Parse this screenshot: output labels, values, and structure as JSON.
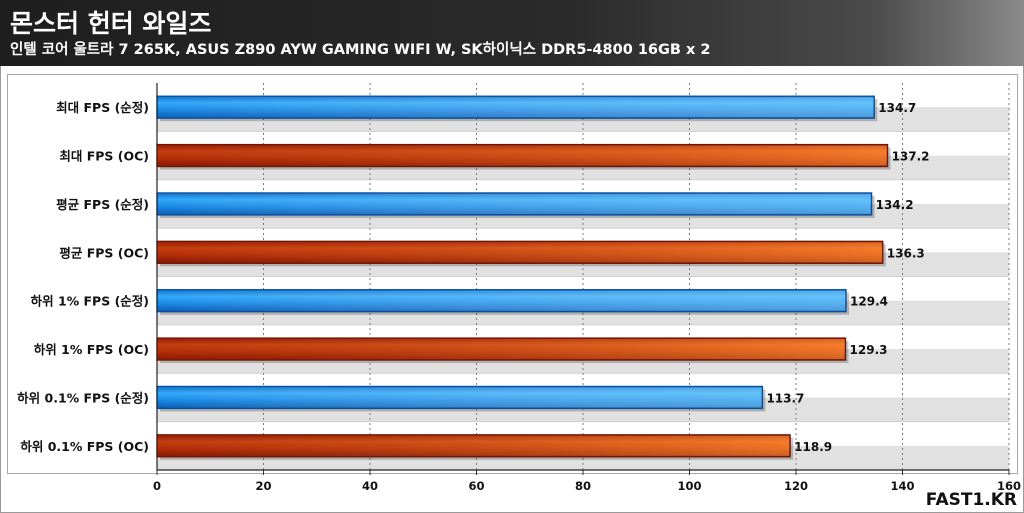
{
  "header": {
    "title": "몬스터 헌터 와일즈",
    "subtitle": "인텔 코어 울트라 7 265K, ASUS Z890 AYW GAMING WIFI W, SK하이닉스 DDR5-4800 16GB x 2"
  },
  "brand": "FAST1.KR",
  "colors": {
    "stock": "#1a8ae6",
    "oc": "#d94410",
    "grid": "#7a7a7a",
    "band": "#e1e1e1"
  },
  "chart_data": {
    "type": "bar",
    "orientation": "horizontal",
    "categories": [
      "최대 FPS (순정)",
      "최대 FPS (OC)",
      "평균 FPS (순정)",
      "평균 FPS (OC)",
      "하위 1% FPS (순정)",
      "하위 1% FPS (OC)",
      "하위 0.1% FPS (순정)",
      "하위 0.1% FPS (OC)"
    ],
    "values": [
      134.7,
      137.2,
      134.2,
      136.3,
      129.4,
      129.3,
      113.7,
      118.9
    ],
    "value_labels": [
      "134.7",
      "137.2",
      "134.2",
      "136.3",
      "129.4",
      "129.3",
      "113.7",
      "118.9"
    ],
    "bar_style": [
      "stock",
      "oc",
      "stock",
      "oc",
      "stock",
      "oc",
      "stock",
      "oc"
    ],
    "xlim": [
      0,
      160
    ],
    "xticks": [
      0,
      20,
      40,
      60,
      80,
      100,
      120,
      140,
      160
    ],
    "xtick_labels": [
      "0",
      "20",
      "40",
      "60",
      "80",
      "100",
      "120",
      "140",
      "160"
    ],
    "grid": "vertical dashed",
    "legend": "none"
  }
}
